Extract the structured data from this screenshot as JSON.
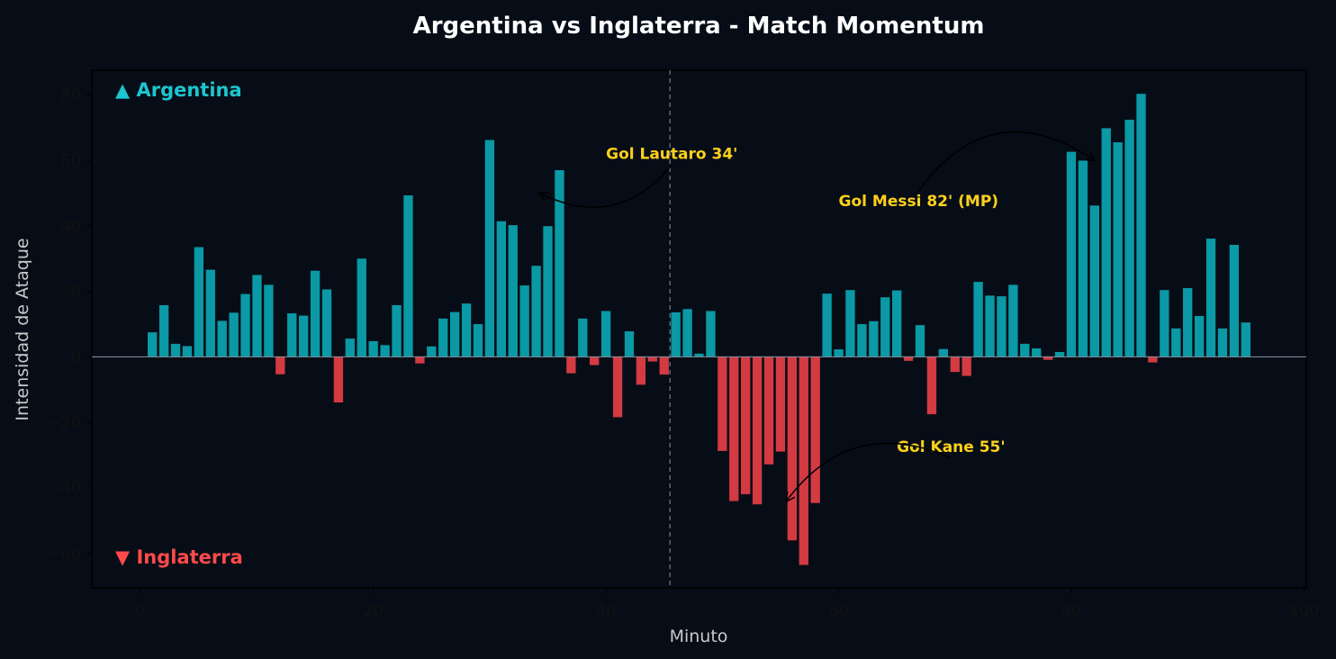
{
  "chart_data": {
    "type": "bar",
    "title": "Argentina vs Inglaterra - Match Momentum",
    "xlabel": "Minuto",
    "ylabel": "Intensidad de Ataque",
    "xlim": [
      -4.2,
      100.2
    ],
    "ylim": [
      -70.5,
      87.5
    ],
    "xticks": [
      0,
      20,
      40,
      60,
      80,
      100
    ],
    "xtick_labels": [
      "0",
      "20",
      "40",
      "60",
      "80",
      "100"
    ],
    "yticks": [
      -60,
      -40,
      -20,
      0,
      20,
      40,
      60,
      80
    ],
    "ytick_labels": [
      "−60",
      "−40",
      "−20",
      "0",
      "20",
      "40",
      "60",
      "80"
    ],
    "halftime_line_x": 45.5,
    "grid": false,
    "legend": [
      {
        "label": "▲ Argentina",
        "color": "#1cc5cf",
        "placement": "top-left"
      },
      {
        "label": "▼ Inglaterra",
        "color": "#ff4a4a",
        "placement": "bottom-left"
      }
    ],
    "colors": {
      "positive": "#0a99a5",
      "negative": "#d33a42",
      "annotation": "#ffd11a",
      "background": "#070d17"
    },
    "series": [
      {
        "x": 1,
        "y": 7.5
      },
      {
        "x": 2,
        "y": 15.8
      },
      {
        "x": 3,
        "y": 4
      },
      {
        "x": 4,
        "y": 3.3
      },
      {
        "x": 5,
        "y": 33.5
      },
      {
        "x": 6,
        "y": 26.6
      },
      {
        "x": 7,
        "y": 11
      },
      {
        "x": 8,
        "y": 13.5
      },
      {
        "x": 9,
        "y": 19.2
      },
      {
        "x": 10,
        "y": 25
      },
      {
        "x": 11,
        "y": 22
      },
      {
        "x": 12,
        "y": -5.3
      },
      {
        "x": 13,
        "y": 13.3
      },
      {
        "x": 14,
        "y": 12.6
      },
      {
        "x": 15,
        "y": 26.3
      },
      {
        "x": 16,
        "y": 20.6
      },
      {
        "x": 17,
        "y": -13.9
      },
      {
        "x": 18,
        "y": 5.6
      },
      {
        "x": 19,
        "y": 30
      },
      {
        "x": 20,
        "y": 4.8
      },
      {
        "x": 21,
        "y": 3.6
      },
      {
        "x": 22,
        "y": 15.8
      },
      {
        "x": 23,
        "y": 49.3
      },
      {
        "x": 24,
        "y": -2
      },
      {
        "x": 25,
        "y": 3.2
      },
      {
        "x": 26,
        "y": 11.7
      },
      {
        "x": 27,
        "y": 13.7
      },
      {
        "x": 28,
        "y": 16.3
      },
      {
        "x": 29,
        "y": 10
      },
      {
        "x": 30,
        "y": 66.2
      },
      {
        "x": 31,
        "y": 41.4
      },
      {
        "x": 32,
        "y": 40.2
      },
      {
        "x": 33,
        "y": 21.8
      },
      {
        "x": 34,
        "y": 27.8
      },
      {
        "x": 35,
        "y": 39.9
      },
      {
        "x": 36,
        "y": 57
      },
      {
        "x": 37,
        "y": -5
      },
      {
        "x": 38,
        "y": 11.7
      },
      {
        "x": 39,
        "y": -2.5
      },
      {
        "x": 40,
        "y": 14
      },
      {
        "x": 41,
        "y": -18.4
      },
      {
        "x": 42,
        "y": 7.8
      },
      {
        "x": 43,
        "y": -8.5
      },
      {
        "x": 44,
        "y": -1.4
      },
      {
        "x": 45,
        "y": -5.4
      },
      {
        "x": 46,
        "y": 13.6
      },
      {
        "x": 47,
        "y": 14.6
      },
      {
        "x": 48,
        "y": 1
      },
      {
        "x": 49,
        "y": 14
      },
      {
        "x": 50,
        "y": -28.7
      },
      {
        "x": 51,
        "y": -44
      },
      {
        "x": 52,
        "y": -41.9
      },
      {
        "x": 53,
        "y": -45
      },
      {
        "x": 54,
        "y": -32.8
      },
      {
        "x": 55,
        "y": -28.9
      },
      {
        "x": 56,
        "y": -56
      },
      {
        "x": 57,
        "y": -63.5
      },
      {
        "x": 58,
        "y": -44.6
      },
      {
        "x": 59,
        "y": 19.3
      },
      {
        "x": 60,
        "y": 2.3
      },
      {
        "x": 61,
        "y": 20.4
      },
      {
        "x": 62,
        "y": 10
      },
      {
        "x": 63,
        "y": 10.9
      },
      {
        "x": 64,
        "y": 18.2
      },
      {
        "x": 65,
        "y": 20.3
      },
      {
        "x": 66,
        "y": -1.2
      },
      {
        "x": 67,
        "y": 9.7
      },
      {
        "x": 68,
        "y": -17.5
      },
      {
        "x": 69,
        "y": 2.4
      },
      {
        "x": 70,
        "y": -4.6
      },
      {
        "x": 71,
        "y": -5.8
      },
      {
        "x": 72,
        "y": 22.9
      },
      {
        "x": 73,
        "y": 18.7
      },
      {
        "x": 74,
        "y": 18.5
      },
      {
        "x": 75,
        "y": 22
      },
      {
        "x": 76,
        "y": 4
      },
      {
        "x": 77,
        "y": 2.6
      },
      {
        "x": 78,
        "y": -0.9
      },
      {
        "x": 79,
        "y": 1.5
      },
      {
        "x": 80,
        "y": 62.6
      },
      {
        "x": 81,
        "y": 59.9
      },
      {
        "x": 82,
        "y": 46.2
      },
      {
        "x": 83,
        "y": 69.8
      },
      {
        "x": 84,
        "y": 65.5
      },
      {
        "x": 85,
        "y": 72.4
      },
      {
        "x": 86,
        "y": 80.3
      },
      {
        "x": 87,
        "y": -1.7
      },
      {
        "x": 88,
        "y": 20.4
      },
      {
        "x": 89,
        "y": 8.7
      },
      {
        "x": 90,
        "y": 21
      },
      {
        "x": 91,
        "y": 12.5
      },
      {
        "x": 92,
        "y": 36.1
      },
      {
        "x": 93,
        "y": 8.7
      },
      {
        "x": 94,
        "y": 34.2
      },
      {
        "x": 95,
        "y": 10.5
      }
    ],
    "annotations": [
      {
        "text": "Gol Lautaro 34'",
        "text_x": 40,
        "text_y": 60.5,
        "arrow_x": 34.3,
        "arrow_y": 50,
        "rad": -0.25
      },
      {
        "text": "Gol Messi 82' (MP)",
        "text_x": 60,
        "text_y": 46,
        "arrow_x": 82,
        "arrow_y": 60,
        "rad": -0.3
      },
      {
        "text": "Gol Kane 55'",
        "text_x": 65,
        "text_y": -29,
        "arrow_x": 55.5,
        "arrow_y": -44,
        "rad": 0.25
      }
    ]
  }
}
